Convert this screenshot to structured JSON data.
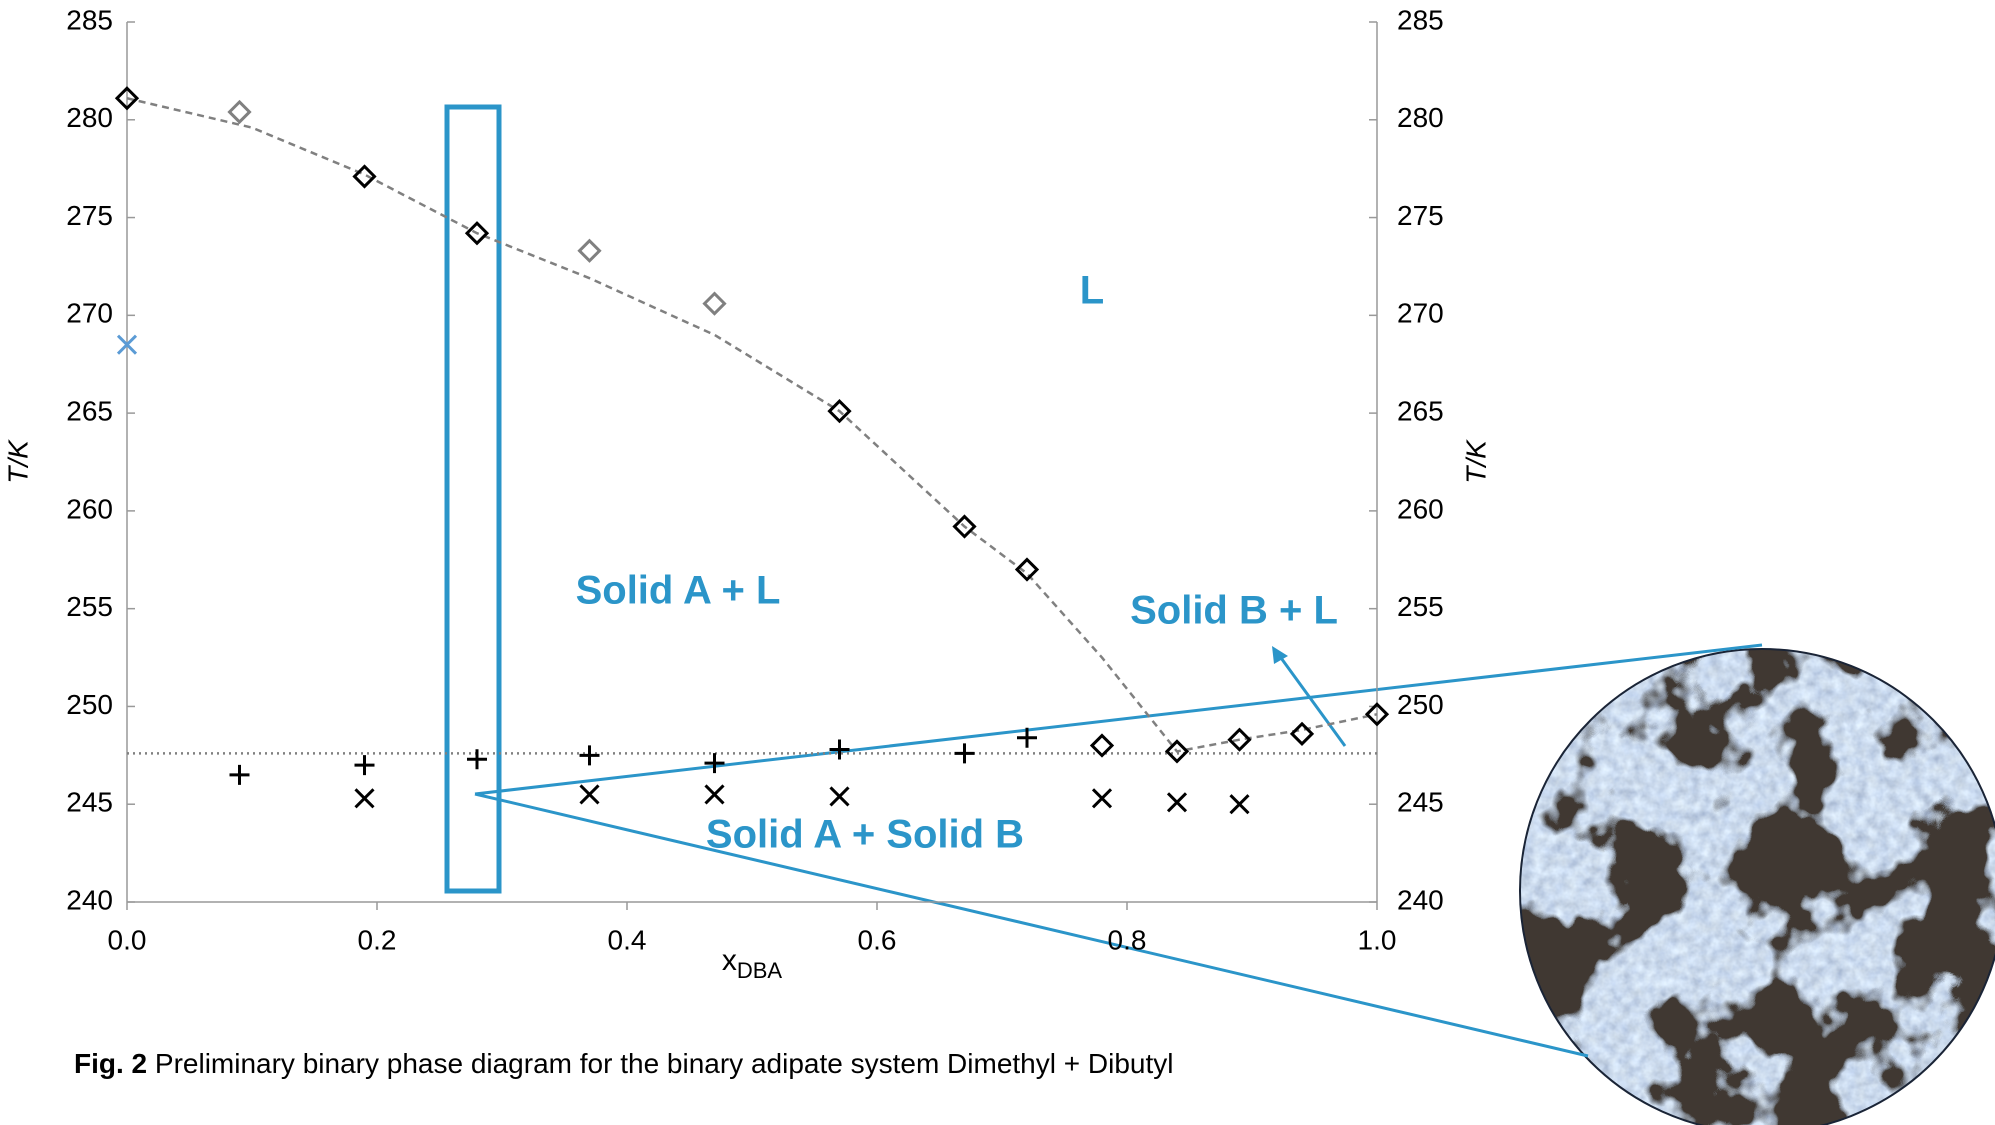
{
  "chart_data": {
    "type": "scatter",
    "x_label": {
      "main": "x",
      "sub": "DBA"
    },
    "y_label": "T/K",
    "y2_label": "T/K",
    "xlim": [
      0,
      1
    ],
    "xticks": [
      {
        "value": 0,
        "label": "0.0"
      },
      0.2,
      0.4,
      0.6,
      0.8,
      {
        "value": 1,
        "label": "1.0"
      }
    ],
    "ylim": [
      240,
      285
    ],
    "yticks": [
      240,
      245,
      250,
      255,
      260,
      265,
      270,
      275,
      280,
      285
    ],
    "y2lim": [
      240,
      285
    ],
    "y2ticks": [
      240,
      245,
      250,
      255,
      260,
      265,
      270,
      275,
      280,
      285
    ],
    "grid": false,
    "series": [
      {
        "marker": "line",
        "style": "dashed",
        "color": "#808080",
        "x": [
          0,
          0.1,
          0.19,
          0.28,
          0.37,
          0.47,
          0.57,
          0.67,
          0.72,
          0.78,
          0.84,
          0.89,
          0.94,
          1.0
        ],
        "values": [
          281.1,
          279.6,
          277.2,
          274.2,
          271.9,
          269.0,
          265.1,
          259.2,
          256.8,
          252.5,
          247.7,
          248.3,
          248.8,
          249.6
        ]
      },
      {
        "marker": "line",
        "style": "dotted",
        "color": "#808080",
        "x": [
          0,
          1.0
        ],
        "values": [
          247.6,
          247.6
        ]
      },
      {
        "marker": "diamond",
        "color": "#000000",
        "x": [
          0,
          0.19,
          0.28,
          0.57,
          0.67,
          0.72,
          0.78,
          0.84,
          0.89,
          0.94,
          1.0
        ],
        "values": [
          281.1,
          277.1,
          274.2,
          265.1,
          259.2,
          257.0,
          248.0,
          247.7,
          248.3,
          248.6,
          249.6
        ]
      },
      {
        "marker": "diamond",
        "color": "#808080",
        "x": [
          0.09,
          0.37,
          0.47
        ],
        "values": [
          280.4,
          273.3,
          270.6
        ]
      },
      {
        "marker": "cross",
        "color": "#5b9bd5",
        "x": [
          0
        ],
        "values": [
          268.5
        ]
      },
      {
        "marker": "plus",
        "color": "#000000",
        "x": [
          0.09,
          0.19,
          0.28,
          0.37,
          0.47,
          0.57,
          0.67,
          0.72
        ],
        "values": [
          246.5,
          247.0,
          247.3,
          247.5,
          247.1,
          247.8,
          247.6,
          248.4
        ]
      },
      {
        "marker": "cross",
        "color": "#000000",
        "x": [
          0.19,
          0.37,
          0.47,
          0.57,
          0.78,
          0.84,
          0.89
        ],
        "values": [
          245.3,
          245.5,
          245.5,
          245.4,
          245.3,
          245.1,
          245.0
        ]
      }
    ],
    "annotations": [
      "L",
      "Solid A + L",
      "Solid B + L",
      "Solid A + Solid B"
    ],
    "caption": {
      "label": "Fig. 2",
      "text": " Preliminary binary phase diagram for the binary adipate system Dimethyl + Dibutyl"
    }
  }
}
